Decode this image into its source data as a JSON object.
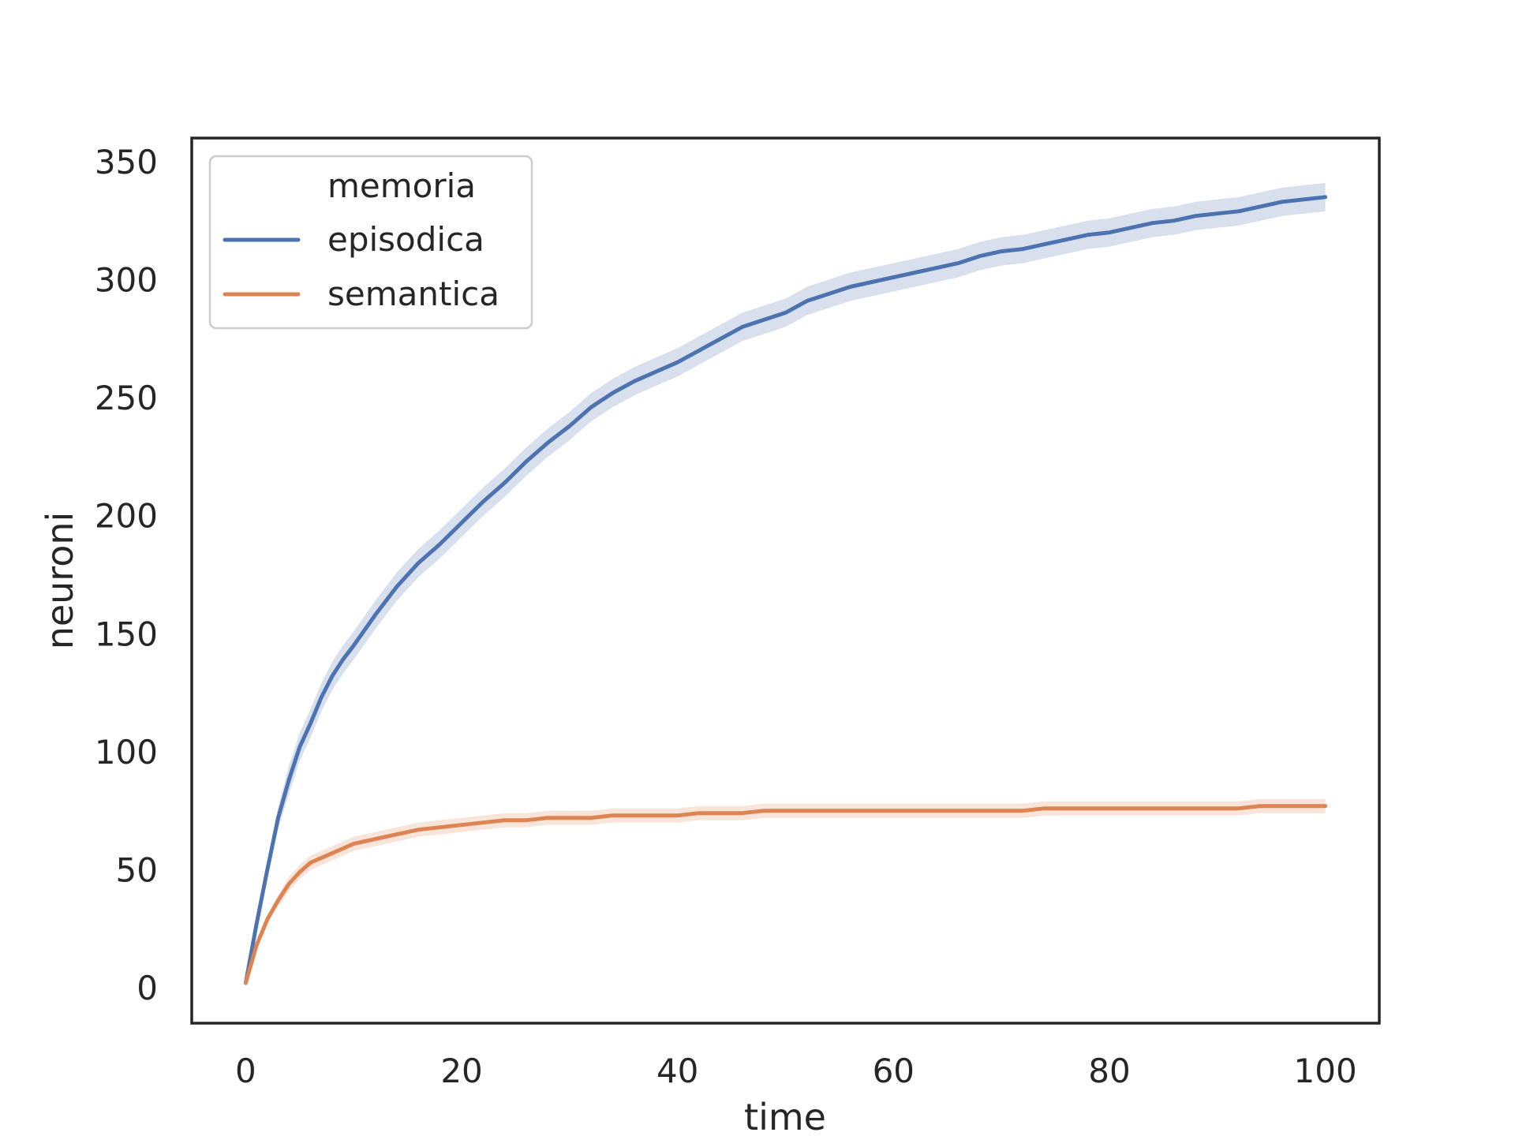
{
  "chart_data": {
    "type": "line",
    "title": "",
    "xlabel": "time",
    "ylabel": "neuroni",
    "xlim": [
      -5,
      105
    ],
    "ylim": [
      -15,
      360
    ],
    "xticks": [
      0,
      20,
      40,
      60,
      80,
      100
    ],
    "yticks": [
      0,
      50,
      100,
      150,
      200,
      250,
      300,
      350
    ],
    "grid": false,
    "legend": {
      "title": "memoria",
      "position": "top-left"
    },
    "x": [
      0,
      1,
      2,
      3,
      4,
      5,
      6,
      7,
      8,
      9,
      10,
      12,
      14,
      16,
      18,
      20,
      22,
      24,
      26,
      28,
      30,
      32,
      34,
      36,
      38,
      40,
      42,
      44,
      46,
      48,
      50,
      52,
      54,
      56,
      58,
      60,
      62,
      64,
      66,
      68,
      70,
      72,
      74,
      76,
      78,
      80,
      82,
      84,
      86,
      88,
      90,
      92,
      94,
      96,
      98,
      100
    ],
    "series": [
      {
        "name": "episodica",
        "color": "#4c72b0",
        "values": [
          2,
          27,
          50,
          72,
          88,
          102,
          112,
          123,
          132,
          139,
          145,
          158,
          170,
          180,
          188,
          197,
          206,
          214,
          223,
          231,
          238,
          246,
          252,
          257,
          261,
          265,
          270,
          275,
          280,
          283,
          286,
          291,
          294,
          297,
          299,
          301,
          303,
          305,
          307,
          310,
          312,
          313,
          315,
          317,
          319,
          320,
          322,
          324,
          325,
          327,
          328,
          329,
          331,
          333,
          334,
          335
        ],
        "band": 6
      },
      {
        "name": "semantica",
        "color": "#dd8452",
        "values": [
          2,
          18,
          29,
          37,
          44,
          49,
          53,
          55,
          57,
          59,
          61,
          63,
          65,
          67,
          68,
          69,
          70,
          71,
          71,
          72,
          72,
          72,
          73,
          73,
          73,
          73,
          74,
          74,
          74,
          75,
          75,
          75,
          75,
          75,
          75,
          75,
          75,
          75,
          75,
          75,
          75,
          75,
          76,
          76,
          76,
          76,
          76,
          76,
          76,
          76,
          76,
          76,
          77,
          77,
          77,
          77
        ],
        "band": 3
      }
    ]
  }
}
